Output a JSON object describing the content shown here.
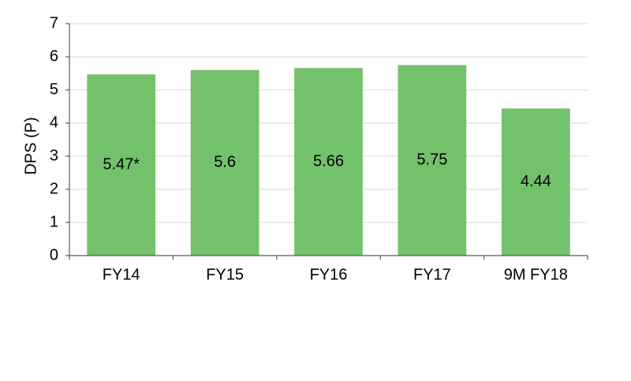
{
  "chart_data": {
    "type": "bar",
    "y_label": "DPS (P)",
    "categories": [
      "FY14",
      "FY15",
      "FY16",
      "FY17",
      "9M FY18"
    ],
    "values": [
      5.47,
      5.6,
      5.66,
      5.75,
      4.44
    ],
    "value_labels": [
      "5.47*",
      "5.6",
      "5.66",
      "5.75",
      "4.44"
    ],
    "color": "#74c16b",
    "ylim": [
      0,
      7
    ],
    "yticks": [
      0,
      1,
      2,
      3,
      4,
      5,
      6,
      7
    ],
    "grid": true
  }
}
